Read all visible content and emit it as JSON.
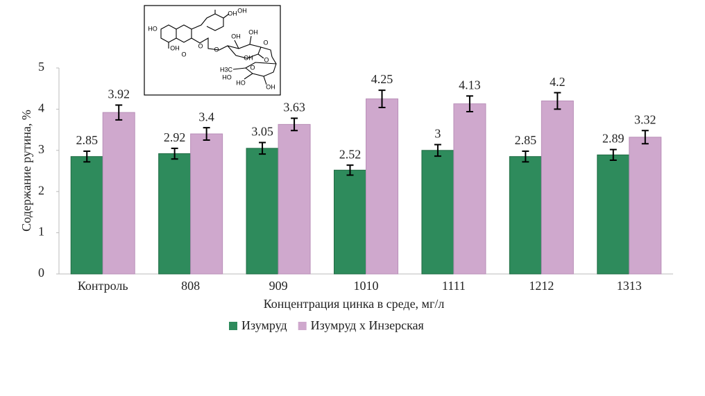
{
  "chart_data": {
    "type": "bar",
    "categories": [
      "Контроль",
      "808",
      "909",
      "1010",
      "1111",
      "1212",
      "1313"
    ],
    "series": [
      {
        "name": "Изумруд",
        "color": "#2e8b5c",
        "values": [
          2.85,
          2.92,
          3.05,
          2.52,
          3,
          2.85,
          2.89
        ],
        "errors": [
          0.13,
          0.13,
          0.14,
          0.12,
          0.14,
          0.13,
          0.13
        ]
      },
      {
        "name": "Изумруд х Инзерская",
        "color": "#cfa8cd",
        "values": [
          3.92,
          3.4,
          3.63,
          4.25,
          4.13,
          4.2,
          3.32
        ],
        "errors": [
          0.18,
          0.15,
          0.15,
          0.21,
          0.19,
          0.2,
          0.16
        ]
      }
    ],
    "xlabel": "Концентрация цинка в среде, мг/л",
    "ylabel": "Содержание рутина, %",
    "ylim": [
      0,
      5
    ],
    "yticks": [
      0,
      1,
      2,
      3,
      4,
      5
    ],
    "grid": false,
    "legend": "bottom"
  },
  "inset": {
    "labels": [
      "HO",
      "OH",
      "OH",
      "O",
      "OH",
      "O",
      "O",
      "OH",
      "OH",
      "O",
      "OH",
      "O",
      "O",
      "H3C",
      "HO",
      "HO",
      "OH"
    ]
  }
}
